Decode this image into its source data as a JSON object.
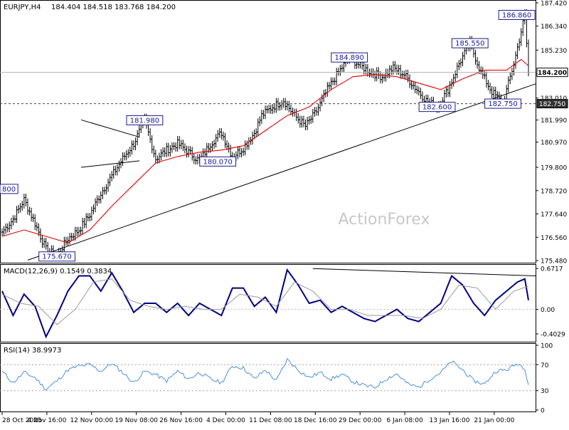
{
  "header": {
    "symbol": "EURJPY,H4",
    "ohlc": "184.404 184.518 183.768 184.200"
  },
  "watermark": "ActionForex",
  "colors": {
    "price_bar": "#000000",
    "ma_line": "#e00000",
    "macd_main": "#000080",
    "macd_signal": "#9a9a9a",
    "rsi_line": "#4a90d9",
    "tag_border": "#1a1a8c",
    "grid_dash": "#444444"
  },
  "chart_data": [
    {
      "type": "line",
      "panel": "price",
      "title": "EURJPY,H4",
      "ylim": [
        175.48,
        187.42
      ],
      "yticks": [
        187.42,
        186.34,
        185.23,
        184.12,
        183.01,
        181.99,
        180.97,
        179.8,
        178.72,
        177.64,
        176.56,
        175.48
      ],
      "ytick_labels": [
        "187.420",
        "186.340",
        "185.230",
        "",
        "183.010",
        "181.990",
        "180.970",
        "179.800",
        "178.720",
        "177.640",
        "176.560",
        "175.480"
      ],
      "xlabels": [
        "28 Oct 2025",
        "4 Nov 16:00",
        "12 Nov 00:00",
        "19 Nov 08:00",
        "26 Nov 16:00",
        "4 Dec 00:00",
        "11 Dec 08:00",
        "18 Dec 16:00",
        "29 Dec 00:00",
        "6 Jan 08:00",
        "13 Jan 16:00",
        "21 Jan 00:00"
      ],
      "series": [
        {
          "name": "price",
          "x": [
            0,
            6,
            12,
            18,
            24,
            30,
            36,
            42,
            48,
            54,
            60,
            66,
            72,
            78,
            84,
            90,
            96,
            102,
            108,
            114,
            120,
            126,
            132,
            138,
            142,
            148,
            154,
            160,
            166,
            172,
            178,
            184,
            190,
            196,
            202,
            208,
            214,
            220,
            226,
            232,
            238,
            244,
            250,
            256,
            262,
            268,
            274,
            280,
            286,
            288
          ],
          "y": [
            176.8,
            177.4,
            178.3,
            177.2,
            176.0,
            175.7,
            176.5,
            176.9,
            177.6,
            178.6,
            179.4,
            180.2,
            180.9,
            181.98,
            180.2,
            180.6,
            180.9,
            180.5,
            180.1,
            180.9,
            181.4,
            180.3,
            180.7,
            181.4,
            182.2,
            182.6,
            182.9,
            182.2,
            181.7,
            182.4,
            183.4,
            184.2,
            184.89,
            184.5,
            184.2,
            184.0,
            184.4,
            184.1,
            183.5,
            182.9,
            182.6,
            183.4,
            184.6,
            185.55,
            184.2,
            183.3,
            182.75,
            184.6,
            186.86,
            184.2
          ]
        },
        {
          "name": "moving average",
          "x": [
            0,
            12,
            24,
            36,
            48,
            60,
            72,
            84,
            96,
            108,
            120,
            132,
            144,
            156,
            168,
            180,
            192,
            204,
            216,
            228,
            240,
            252,
            264,
            276,
            284,
            288
          ],
          "y": [
            176.6,
            176.9,
            176.6,
            176.3,
            176.9,
            178.0,
            179.0,
            180.0,
            180.3,
            180.5,
            180.6,
            180.8,
            181.5,
            182.2,
            182.6,
            183.4,
            184.0,
            184.1,
            184.0,
            183.7,
            183.4,
            183.9,
            184.3,
            184.3,
            184.8,
            184.5
          ]
        }
      ],
      "hlines": [
        184.2,
        182.75
      ],
      "trendline": {
        "x": [
          14,
          288
        ],
        "y": [
          175.5,
          183.6
        ]
      },
      "triangle": {
        "upper": {
          "x": [
            42,
            74
          ],
          "y": [
            182.0,
            181.2
          ]
        },
        "lower": {
          "x": [
            42,
            74
          ],
          "y": [
            179.8,
            180.1
          ]
        }
      },
      "annotations": [
        {
          "label": "186.860",
          "x": 288,
          "y": 186.86
        },
        {
          "label": "185.550",
          "x": 256,
          "y": 185.55
        },
        {
          "label": "184.890",
          "x": 190,
          "y": 184.89
        },
        {
          "label": "182.600",
          "x": 238,
          "y": 182.6
        },
        {
          "label": "182.750",
          "x": 274,
          "y": 182.75
        },
        {
          "label": "181.980",
          "x": 78,
          "y": 181.98
        },
        {
          "label": "180.070",
          "x": 118,
          "y": 180.07
        },
        {
          "label": "175.670",
          "x": 30,
          "y": 175.67
        },
        {
          "label": "800",
          "x": 0,
          "y": 178.8
        }
      ],
      "price_tags": [
        {
          "label": "184.200",
          "y": 184.2,
          "style": "current"
        },
        {
          "label": "182.750",
          "y": 182.75,
          "style": "dark"
        }
      ]
    },
    {
      "type": "line",
      "panel": "macd",
      "title": "MACD(12,26,9) 0.1549 0.3834",
      "ylim": [
        -0.52,
        0.72
      ],
      "yticks": [
        0.6717,
        0.0,
        -0.4029
      ],
      "ytick_labels": [
        "0.6717",
        "0.00",
        "-0.4029"
      ],
      "series": [
        {
          "name": "MACD",
          "x": [
            0,
            6,
            12,
            18,
            24,
            30,
            36,
            42,
            48,
            54,
            60,
            66,
            72,
            78,
            84,
            90,
            96,
            102,
            108,
            114,
            120,
            126,
            132,
            138,
            144,
            150,
            156,
            162,
            168,
            174,
            180,
            186,
            192,
            198,
            204,
            210,
            216,
            222,
            228,
            234,
            240,
            246,
            252,
            258,
            264,
            270,
            276,
            282,
            286,
            288
          ],
          "y": [
            0.3,
            -0.1,
            0.25,
            0.05,
            -0.45,
            -0.1,
            0.3,
            0.55,
            0.55,
            0.3,
            0.6,
            0.3,
            -0.05,
            0.1,
            0.1,
            -0.05,
            0.1,
            -0.1,
            0.1,
            0.0,
            -0.1,
            0.35,
            0.35,
            0.05,
            0.2,
            -0.05,
            0.65,
            0.4,
            0.1,
            0.15,
            -0.05,
            0.05,
            -0.05,
            -0.15,
            -0.2,
            -0.1,
            0.0,
            -0.15,
            -0.2,
            -0.05,
            0.1,
            0.55,
            0.4,
            0.1,
            -0.1,
            0.15,
            0.3,
            0.45,
            0.5,
            0.15
          ]
        },
        {
          "name": "signal",
          "x": [
            0,
            10,
            20,
            30,
            40,
            50,
            60,
            70,
            80,
            90,
            100,
            110,
            120,
            130,
            140,
            150,
            160,
            170,
            180,
            190,
            200,
            210,
            220,
            230,
            240,
            250,
            260,
            270,
            280,
            288
          ],
          "y": [
            0.25,
            0.1,
            0.05,
            -0.25,
            0.0,
            0.45,
            0.5,
            0.15,
            0.05,
            0.0,
            0.05,
            0.0,
            0.0,
            0.25,
            0.2,
            0.05,
            0.45,
            0.3,
            0.0,
            0.0,
            -0.1,
            -0.1,
            -0.1,
            -0.15,
            0.0,
            0.4,
            0.35,
            0.0,
            0.3,
            0.38
          ]
        }
      ],
      "trendline": {
        "x": [
          170,
          288
        ],
        "y": [
          0.67,
          0.55
        ]
      }
    },
    {
      "type": "line",
      "panel": "rsi",
      "title": "RSI(14) 38.9973",
      "ylim": [
        0,
        100
      ],
      "yticks": [
        100,
        70,
        30,
        0
      ],
      "ytick_labels": [
        "100",
        "70",
        "30",
        "0"
      ],
      "levels": [
        70,
        30
      ],
      "series": [
        {
          "name": "RSI",
          "x": [
            0,
            6,
            12,
            18,
            24,
            30,
            36,
            42,
            48,
            54,
            60,
            66,
            72,
            78,
            84,
            90,
            96,
            102,
            108,
            114,
            120,
            126,
            132,
            138,
            144,
            150,
            156,
            162,
            168,
            174,
            180,
            186,
            192,
            198,
            204,
            210,
            216,
            222,
            228,
            234,
            240,
            246,
            252,
            258,
            264,
            270,
            276,
            282,
            286,
            288
          ],
          "y": [
            60,
            42,
            58,
            50,
            32,
            45,
            62,
            68,
            70,
            60,
            72,
            58,
            42,
            60,
            55,
            45,
            60,
            48,
            58,
            48,
            42,
            68,
            65,
            48,
            62,
            45,
            78,
            62,
            50,
            58,
            48,
            55,
            44,
            38,
            35,
            48,
            56,
            40,
            35,
            48,
            58,
            75,
            62,
            45,
            40,
            60,
            62,
            72,
            65,
            39
          ]
        }
      ]
    }
  ]
}
